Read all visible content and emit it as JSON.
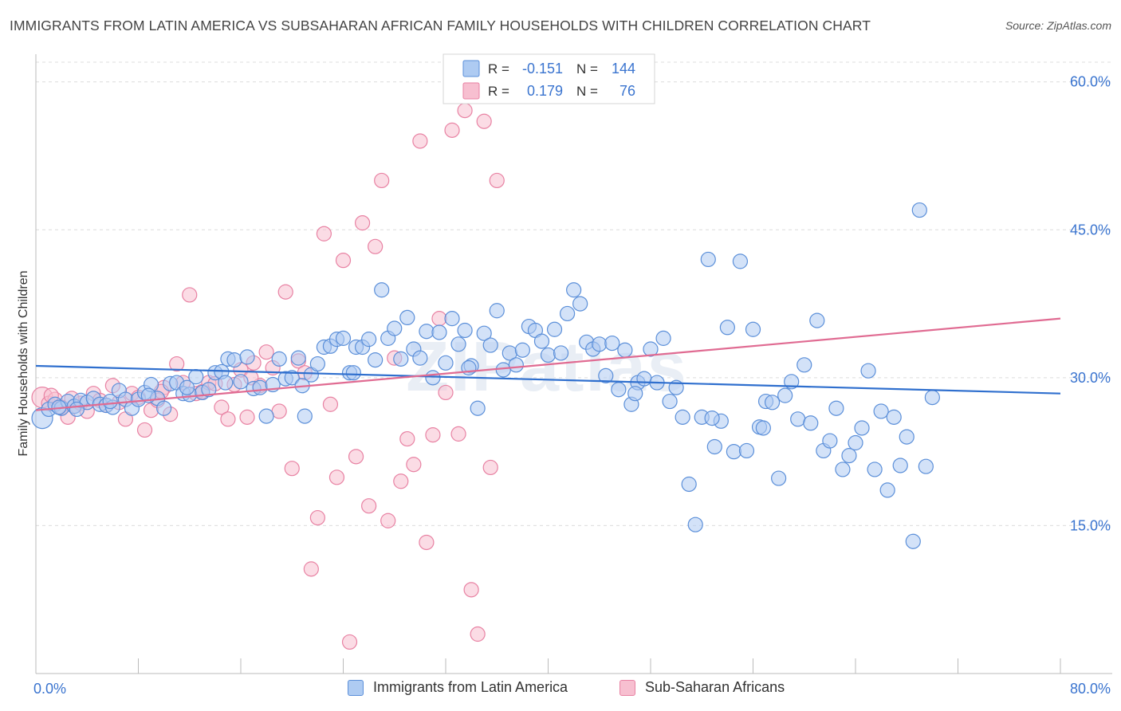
{
  "header": {
    "title": "IMMIGRANTS FROM LATIN AMERICA VS SUBSAHARAN AFRICAN FAMILY HOUSEHOLDS WITH CHILDREN CORRELATION CHART",
    "source": "Source: ZipAtlas.com"
  },
  "watermark": "ZIPatlas",
  "colors": {
    "blue_fill": "#aecbf2",
    "blue_stroke": "#5b8fd9",
    "blue_line": "#2f6fce",
    "pink_fill": "#f7bfd0",
    "pink_stroke": "#e882a3",
    "pink_line": "#e06b92",
    "axis_label": "#3a74cf",
    "grid": "#dcdcdc"
  },
  "legend": {
    "rows": [
      {
        "r_label": "R =",
        "r_value": "-0.151",
        "n_label": "N =",
        "n_value": "144"
      },
      {
        "r_label": "R =",
        "r_value": "0.179",
        "n_label": "N =",
        "n_value": "76"
      }
    ]
  },
  "chart_data": {
    "type": "scatter",
    "ylabel": "Family Households with Children",
    "xlim": [
      0,
      80
    ],
    "ylim": [
      0,
      62
    ],
    "x_tick_labels": [
      "0.0%",
      "80.0%"
    ],
    "y_ticks": [
      15,
      30,
      45,
      60
    ],
    "y_tick_labels": [
      "15.0%",
      "30.0%",
      "45.0%",
      "60.0%"
    ],
    "series": [
      {
        "name": "Immigrants from Latin America",
        "color": "blue",
        "r": -0.151,
        "n": 144,
        "trend": {
          "x0": 0,
          "y0": 31.2,
          "x1": 80,
          "y1": 28.4
        },
        "points": [
          [
            0.5,
            25.9
          ],
          [
            1.0,
            26.8
          ],
          [
            1.5,
            27.3
          ],
          [
            2.0,
            26.9
          ],
          [
            2.5,
            27.6
          ],
          [
            3.0,
            27.1
          ],
          [
            3.5,
            27.7
          ],
          [
            4.0,
            27.5
          ],
          [
            4.5,
            27.9
          ],
          [
            5.0,
            27.3
          ],
          [
            5.5,
            27.2
          ],
          [
            6.0,
            27.0
          ],
          [
            6.5,
            28.7
          ],
          [
            7.0,
            27.8
          ],
          [
            7.5,
            26.9
          ],
          [
            8.0,
            27.8
          ],
          [
            8.5,
            28.5
          ],
          [
            9.0,
            29.3
          ],
          [
            9.5,
            27.9
          ],
          [
            10.0,
            26.9
          ],
          [
            10.5,
            29.4
          ],
          [
            11.0,
            29.5
          ],
          [
            11.5,
            28.4
          ],
          [
            12.0,
            28.3
          ],
          [
            12.5,
            30.1
          ],
          [
            13.0,
            28.5
          ],
          [
            13.5,
            28.8
          ],
          [
            14.0,
            30.5
          ],
          [
            14.5,
            30.6
          ],
          [
            15.0,
            31.9
          ],
          [
            15.5,
            31.8
          ],
          [
            16.0,
            29.6
          ],
          [
            16.5,
            32.1
          ],
          [
            17.0,
            28.9
          ],
          [
            17.5,
            29.0
          ],
          [
            18.0,
            26.1
          ],
          [
            18.5,
            29.3
          ],
          [
            19.0,
            31.9
          ],
          [
            19.5,
            29.9
          ],
          [
            20.0,
            30.0
          ],
          [
            20.5,
            32.0
          ],
          [
            21.0,
            26.1
          ],
          [
            21.5,
            30.3
          ],
          [
            22.0,
            31.4
          ],
          [
            22.5,
            33.1
          ],
          [
            23.0,
            33.2
          ],
          [
            23.5,
            33.9
          ],
          [
            24.0,
            34.0
          ],
          [
            24.5,
            30.5
          ],
          [
            25.0,
            33.1
          ],
          [
            25.5,
            33.1
          ],
          [
            26.0,
            33.9
          ],
          [
            26.5,
            31.8
          ],
          [
            27.0,
            38.9
          ],
          [
            27.5,
            34.0
          ],
          [
            28.0,
            35.0
          ],
          [
            28.5,
            31.9
          ],
          [
            29.0,
            36.1
          ],
          [
            29.5,
            32.9
          ],
          [
            30.0,
            32.0
          ],
          [
            30.5,
            34.7
          ],
          [
            31.0,
            30.0
          ],
          [
            31.5,
            34.6
          ],
          [
            32.0,
            31.5
          ],
          [
            32.5,
            36.0
          ],
          [
            33.0,
            33.4
          ],
          [
            33.5,
            34.8
          ],
          [
            34.0,
            31.2
          ],
          [
            34.5,
            26.9
          ],
          [
            35.0,
            34.5
          ],
          [
            35.5,
            33.3
          ],
          [
            36.0,
            36.8
          ],
          [
            36.5,
            30.8
          ],
          [
            37.0,
            32.5
          ],
          [
            37.5,
            31.3
          ],
          [
            38.0,
            32.8
          ],
          [
            38.5,
            35.2
          ],
          [
            39.0,
            34.8
          ],
          [
            39.5,
            33.7
          ],
          [
            40.0,
            32.3
          ],
          [
            40.5,
            34.9
          ],
          [
            41.0,
            32.5
          ],
          [
            41.5,
            36.5
          ],
          [
            42.0,
            38.9
          ],
          [
            42.5,
            37.5
          ],
          [
            43.0,
            33.6
          ],
          [
            43.5,
            32.9
          ],
          [
            44.0,
            33.4
          ],
          [
            44.5,
            30.2
          ],
          [
            45.0,
            33.5
          ],
          [
            45.5,
            28.8
          ],
          [
            46.0,
            32.8
          ],
          [
            46.5,
            27.3
          ],
          [
            47.0,
            29.5
          ],
          [
            47.5,
            29.9
          ],
          [
            48.0,
            32.9
          ],
          [
            48.5,
            29.5
          ],
          [
            49.0,
            34.0
          ],
          [
            49.5,
            27.6
          ],
          [
            50.0,
            29.0
          ],
          [
            50.5,
            26.0
          ],
          [
            51.0,
            19.2
          ],
          [
            51.5,
            15.1
          ],
          [
            52.0,
            26.0
          ],
          [
            52.5,
            42.0
          ],
          [
            53.0,
            23.0
          ],
          [
            53.5,
            25.6
          ],
          [
            54.0,
            35.1
          ],
          [
            54.5,
            22.5
          ],
          [
            55.0,
            41.8
          ],
          [
            55.5,
            22.6
          ],
          [
            56.0,
            34.9
          ],
          [
            56.5,
            25.0
          ],
          [
            57.0,
            27.6
          ],
          [
            57.5,
            27.5
          ],
          [
            58.0,
            19.8
          ],
          [
            58.5,
            28.2
          ],
          [
            59.0,
            29.6
          ],
          [
            59.5,
            25.8
          ],
          [
            60.0,
            31.3
          ],
          [
            60.5,
            25.4
          ],
          [
            61.0,
            35.8
          ],
          [
            61.5,
            22.6
          ],
          [
            62.0,
            23.6
          ],
          [
            62.5,
            26.9
          ],
          [
            63.0,
            20.7
          ],
          [
            63.5,
            22.1
          ],
          [
            64.0,
            23.4
          ],
          [
            64.5,
            24.9
          ],
          [
            65.0,
            30.7
          ],
          [
            65.5,
            20.7
          ],
          [
            66.0,
            26.6
          ],
          [
            66.5,
            18.6
          ],
          [
            67.0,
            26.0
          ],
          [
            67.5,
            21.1
          ],
          [
            68.0,
            24.0
          ],
          [
            68.5,
            13.4
          ],
          [
            69.0,
            47.0
          ],
          [
            69.5,
            21.0
          ],
          [
            70.0,
            28.0
          ],
          [
            1.8,
            27.0
          ],
          [
            3.2,
            26.8
          ],
          [
            5.8,
            27.6
          ],
          [
            8.8,
            28.2
          ],
          [
            11.8,
            29.0
          ],
          [
            14.8,
            29.5
          ],
          [
            20.8,
            29.2
          ],
          [
            24.8,
            30.5
          ],
          [
            33.8,
            31.0
          ],
          [
            46.8,
            28.4
          ],
          [
            52.8,
            25.9
          ],
          [
            56.8,
            24.9
          ]
        ]
      },
      {
        "name": "Sub-Saharan Africans",
        "color": "pink",
        "r": 0.179,
        "n": 76,
        "trend": {
          "x0": 0,
          "y0": 26.7,
          "x1": 80,
          "y1": 36.0
        },
        "points": [
          [
            0.5,
            28.0
          ],
          [
            1.0,
            27.4
          ],
          [
            1.5,
            27.8
          ],
          [
            2.0,
            27.0
          ],
          [
            2.5,
            26.0
          ],
          [
            3.0,
            27.1
          ],
          [
            3.5,
            27.4
          ],
          [
            4.0,
            26.6
          ],
          [
            4.5,
            28.4
          ],
          [
            5.0,
            27.7
          ],
          [
            5.5,
            27.2
          ],
          [
            6.0,
            29.2
          ],
          [
            6.5,
            27.5
          ],
          [
            7.0,
            25.8
          ],
          [
            7.5,
            28.4
          ],
          [
            8.0,
            28.0
          ],
          [
            8.5,
            24.7
          ],
          [
            9.0,
            26.7
          ],
          [
            9.5,
            27.7
          ],
          [
            10.0,
            29.0
          ],
          [
            10.5,
            26.3
          ],
          [
            11.0,
            31.4
          ],
          [
            11.5,
            29.5
          ],
          [
            12.0,
            38.4
          ],
          [
            12.5,
            28.4
          ],
          [
            13.0,
            28.6
          ],
          [
            13.5,
            29.5
          ],
          [
            14.0,
            29.4
          ],
          [
            14.5,
            27.0
          ],
          [
            15.0,
            25.8
          ],
          [
            15.5,
            29.3
          ],
          [
            16.0,
            30.8
          ],
          [
            16.5,
            26.0
          ],
          [
            17.0,
            31.5
          ],
          [
            17.5,
            29.2
          ],
          [
            18.0,
            32.6
          ],
          [
            18.5,
            31.0
          ],
          [
            19.0,
            26.6
          ],
          [
            19.5,
            38.7
          ],
          [
            20.0,
            20.8
          ],
          [
            20.5,
            31.7
          ],
          [
            21.0,
            30.5
          ],
          [
            21.5,
            10.6
          ],
          [
            22.0,
            15.8
          ],
          [
            22.5,
            44.6
          ],
          [
            23.0,
            27.3
          ],
          [
            23.5,
            19.9
          ],
          [
            24.0,
            41.9
          ],
          [
            24.5,
            3.2
          ],
          [
            25.0,
            22.0
          ],
          [
            25.5,
            45.7
          ],
          [
            26.0,
            17.0
          ],
          [
            26.5,
            43.3
          ],
          [
            27.0,
            50.0
          ],
          [
            27.5,
            15.5
          ],
          [
            28.0,
            32.0
          ],
          [
            28.5,
            19.5
          ],
          [
            29.0,
            23.8
          ],
          [
            29.5,
            21.2
          ],
          [
            30.0,
            54.0
          ],
          [
            30.5,
            13.3
          ],
          [
            31.0,
            24.2
          ],
          [
            31.5,
            36.0
          ],
          [
            32.0,
            28.5
          ],
          [
            32.5,
            55.1
          ],
          [
            33.0,
            24.3
          ],
          [
            33.5,
            57.1
          ],
          [
            34.0,
            8.5
          ],
          [
            34.5,
            4.0
          ],
          [
            35.0,
            56.0
          ],
          [
            35.5,
            20.9
          ],
          [
            36.0,
            50.0
          ],
          [
            1.2,
            28.2
          ],
          [
            2.8,
            27.9
          ],
          [
            9.8,
            28.6
          ],
          [
            16.8,
            30.0
          ]
        ]
      }
    ]
  },
  "bottom_legend": {
    "items": [
      {
        "label": "Immigrants from Latin America"
      },
      {
        "label": "Sub-Saharan Africans"
      }
    ]
  }
}
